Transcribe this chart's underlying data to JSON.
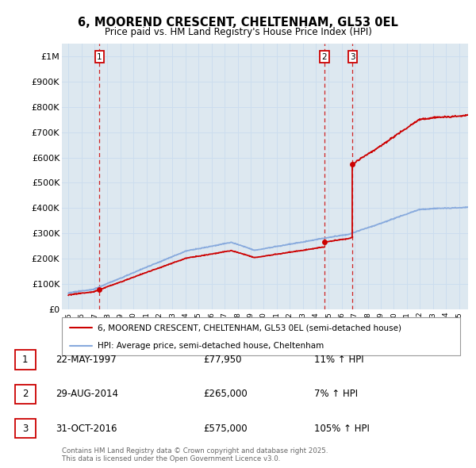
{
  "title": "6, MOOREND CRESCENT, CHELTENHAM, GL53 0EL",
  "subtitle": "Price paid vs. HM Land Registry's House Price Index (HPI)",
  "property_label": "6, MOOREND CRESCENT, CHELTENHAM, GL53 0EL (semi-detached house)",
  "hpi_label": "HPI: Average price, semi-detached house, Cheltenham",
  "transactions": [
    {
      "num": 1,
      "date": "22-MAY-1997",
      "date_x": 1997.39,
      "price": 77950
    },
    {
      "num": 2,
      "date": "29-AUG-2014",
      "date_x": 2014.66,
      "price": 265000
    },
    {
      "num": 3,
      "date": "31-OCT-2016",
      "date_x": 2016.83,
      "price": 575000
    }
  ],
  "transaction_pct": [
    "11% ↑ HPI",
    "7% ↑ HPI",
    "105% ↑ HPI"
  ],
  "ylim": [
    0,
    1050000
  ],
  "xlim_start": 1994.5,
  "xlim_end": 2025.7,
  "yticks": [
    0,
    100000,
    200000,
    300000,
    400000,
    500000,
    600000,
    700000,
    800000,
    900000,
    1000000
  ],
  "ytick_labels": [
    "£0",
    "£100K",
    "£200K",
    "£300K",
    "£400K",
    "£500K",
    "£600K",
    "£700K",
    "£800K",
    "£900K",
    "£1M"
  ],
  "property_color": "#cc0000",
  "hpi_color": "#88aadd",
  "grid_color": "#ccddee",
  "bg_color": "#dde8f0",
  "footer": "Contains HM Land Registry data © Crown copyright and database right 2025.\nThis data is licensed under the Open Government Licence v3.0."
}
